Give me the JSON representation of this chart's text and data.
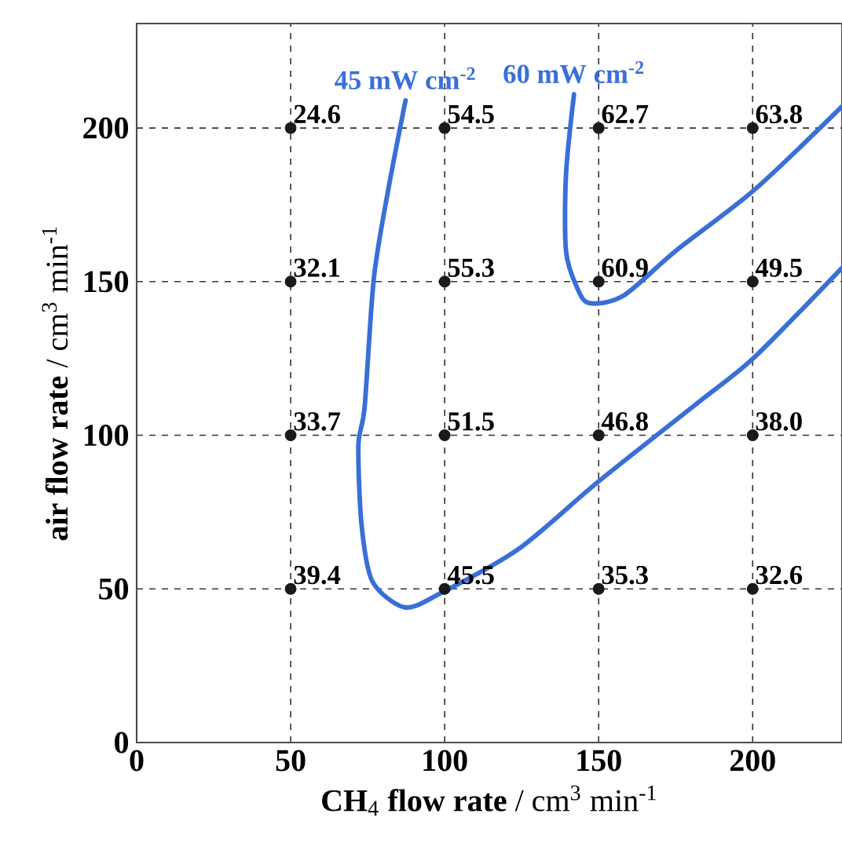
{
  "chart_data": {
    "type": "scatter",
    "xlabel": "**CH**$_{4}$ **flow rate** / cm$^{3}$ min$^{-1}$",
    "ylabel": "**air flow rate** / cm$^{3}$ min$^{-1}$",
    "xlim": [
      0,
      229
    ],
    "ylim": [
      0,
      234
    ],
    "xticks": [
      0,
      50,
      100,
      150,
      200
    ],
    "yticks": [
      0,
      50,
      100,
      150,
      200
    ],
    "grid": true,
    "series": [
      {
        "color": "#1a1a1a",
        "marker": "circle",
        "x": [
          50,
          100,
          150,
          200,
          50,
          100,
          150,
          200,
          50,
          100,
          150,
          200,
          50,
          100,
          150,
          200
        ],
        "values": [
          200,
          200,
          200,
          200,
          150,
          150,
          150,
          150,
          100,
          100,
          100,
          100,
          50,
          50,
          50,
          50
        ]
      },
      {
        "type": "line",
        "name": "45 mW cm$^{-2}$",
        "color": "#3a6fd8",
        "marker": "none",
        "x": [
          87.3,
          81.7,
          77,
          74,
          72,
          73,
          76.5,
          87,
          98.5,
          124,
          150,
          184,
          200.7,
          229
        ],
        "values": [
          209,
          180,
          151,
          109,
          97,
          71,
          52.5,
          44,
          48.5,
          63,
          85,
          112,
          125.5,
          154.5
        ]
      },
      {
        "type": "line",
        "name": "60 mW cm$^{-2}$",
        "color": "#3a6fd8",
        "marker": "none",
        "x": [
          142,
          139.4,
          139.4,
          143,
          147,
          158,
          175,
          200.7,
          229
        ],
        "values": [
          211,
          185,
          160,
          148,
          143,
          145.4,
          160,
          180,
          207
        ]
      }
    ],
    "annotations": [
      {
        "text": "24.6",
        "x": 50,
        "y": 200
      },
      {
        "text": "54.5",
        "x": 100,
        "y": 200
      },
      {
        "text": "62.7",
        "x": 150,
        "y": 200
      },
      {
        "text": "63.8",
        "x": 200,
        "y": 200
      },
      {
        "text": "32.1",
        "x": 50,
        "y": 150
      },
      {
        "text": "55.3",
        "x": 100,
        "y": 150
      },
      {
        "text": "60.9",
        "x": 150,
        "y": 150
      },
      {
        "text": "49.5",
        "x": 200,
        "y": 150
      },
      {
        "text": "33.7",
        "x": 50,
        "y": 100
      },
      {
        "text": "51.5",
        "x": 100,
        "y": 100
      },
      {
        "text": "46.8",
        "x": 150,
        "y": 100
      },
      {
        "text": "38.0",
        "x": 200,
        "y": 100
      },
      {
        "text": "39.4",
        "x": 50,
        "y": 50
      },
      {
        "text": "45.5",
        "x": 100,
        "y": 50
      },
      {
        "text": "35.3",
        "x": 150,
        "y": 50
      },
      {
        "text": "32.6",
        "x": 200,
        "y": 50
      }
    ]
  }
}
